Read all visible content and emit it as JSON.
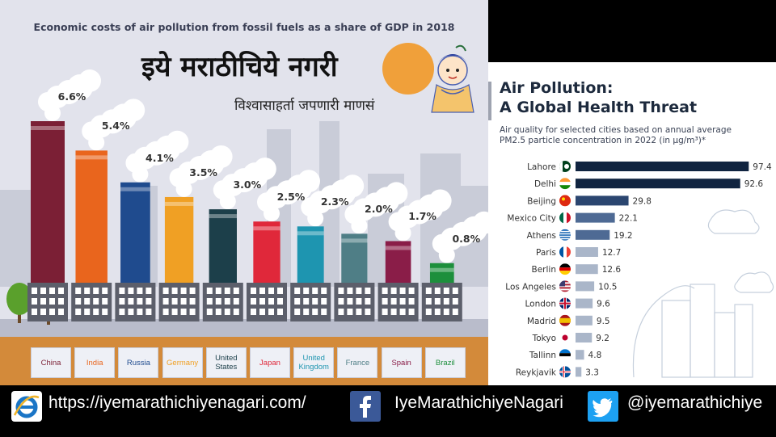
{
  "left": {
    "title": "Economic costs of air pollution from fossil fuels as a share of GDP in 2018",
    "marathi_title": "इये मराठीचिये नगरी",
    "marathi_subtitle": "विश्वासाहर्ता जपणारी माणसं"
  },
  "right": {
    "title_line1": "Air Pollution:",
    "title_line2": "A Global Health Threat",
    "subtitle_line1": "Air quality for selected cities based on annual average",
    "subtitle_line2": "PM2.5 particle concentration in 2022 (in µg/m³)*"
  },
  "footer": {
    "website": "https://iyemarathichiyenagari.com/",
    "facebook": "IyeMarathichiyeNagari",
    "twitter": "@iyemarathichiye",
    "colors": {
      "ie": "#1a75c6",
      "facebook": "#1877f2",
      "twitter": "#1da1f2"
    }
  },
  "chart_data": [
    {
      "type": "bar",
      "title": "Economic costs of air pollution from fossil fuels as a share of GDP in 2018",
      "categories": [
        "China",
        "India",
        "Russia",
        "Germany",
        "United States",
        "Japan",
        "United Kingdom",
        "France",
        "Spain",
        "Brazil"
      ],
      "label_lines": [
        [
          "China"
        ],
        [
          "India"
        ],
        [
          "Russia"
        ],
        [
          "Germany"
        ],
        [
          "United",
          "States"
        ],
        [
          "Japan"
        ],
        [
          "United",
          "Kingdom"
        ],
        [
          "France"
        ],
        [
          "Spain"
        ],
        [
          "Brazil"
        ]
      ],
      "values": [
        6.6,
        5.4,
        4.1,
        3.5,
        3.0,
        2.5,
        2.3,
        2.0,
        1.7,
        0.8
      ],
      "labels": [
        "6.6%",
        "5.4%",
        "4.1%",
        "3.5%",
        "3.0%",
        "2.5%",
        "2.3%",
        "2.0%",
        "1.7%",
        "0.8%"
      ],
      "colors": [
        "#7b1f35",
        "#e9651d",
        "#1f4b8e",
        "#f0a024",
        "#1c3f4a",
        "#e0283a",
        "#1e95b0",
        "#4f7e86",
        "#8a1d48",
        "#1d8f3c"
      ],
      "label_colors": [
        "#7b1f35",
        "#e9651d",
        "#1f4b8e",
        "#f0a024",
        "#1c3f4a",
        "#e0283a",
        "#1e95b0",
        "#4f7e86",
        "#8a1d48",
        "#1d8f3c"
      ],
      "unit": "%"
    },
    {
      "type": "bar",
      "orientation": "horizontal",
      "title": "Air Pollution: A Global Health Threat",
      "categories": [
        "Lahore",
        "Delhi",
        "Beijing",
        "Mexico City",
        "Athens",
        "Paris",
        "Berlin",
        "Los Angeles",
        "London",
        "Madrid",
        "Tokyo",
        "Tallinn",
        "Reykjavik"
      ],
      "values": [
        97.4,
        92.6,
        29.8,
        22.1,
        19.2,
        12.7,
        12.6,
        10.5,
        9.6,
        9.5,
        9.2,
        4.8,
        3.3
      ],
      "flags": [
        "pakistan",
        "india",
        "china",
        "mexico",
        "greece",
        "france",
        "germany",
        "usa",
        "uk",
        "spain",
        "japan",
        "estonia",
        "iceland"
      ],
      "bar_colors": [
        "#102440",
        "#102440",
        "#2b4670",
        "#4e6a94",
        "#4e6a94",
        "#aab6c9",
        "#aab6c9",
        "#aab6c9",
        "#aab6c9",
        "#aab6c9",
        "#aab6c9",
        "#aab6c9",
        "#aab6c9"
      ],
      "xlim": [
        0,
        100
      ]
    }
  ]
}
